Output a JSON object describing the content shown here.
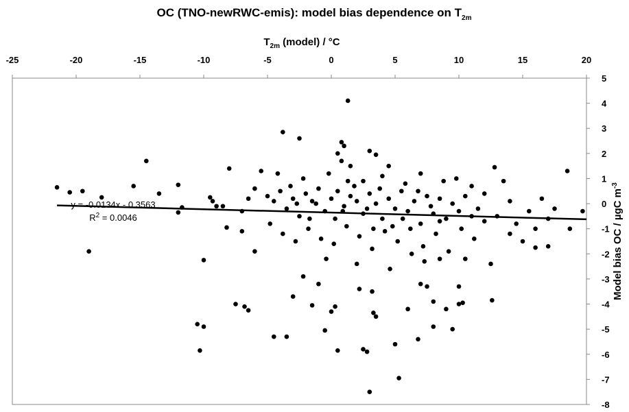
{
  "chart_data": {
    "type": "scatter",
    "title": [
      "OC (TNO-newRWC-emis): model bias dependence on T",
      "2m"
    ],
    "x_label": [
      "T",
      "2m",
      " (model) / °C"
    ],
    "y_label": [
      "Model bias OC / µgC m",
      "-3"
    ],
    "annotations": [
      "y = -0.0134x - 0.3563",
      "R",
      "2",
      " = 0.0046"
    ],
    "color": "#000000",
    "xlim": [
      -25,
      20
    ],
    "xticks": [
      -25,
      -20,
      -15,
      -10,
      -5,
      0,
      5,
      10,
      15,
      20
    ],
    "ylim": [
      -8,
      5
    ],
    "yticks": [
      -8,
      -7,
      -6,
      -5,
      -4,
      -3,
      -2,
      -1,
      0,
      1,
      2,
      3,
      4,
      5
    ],
    "grid": false,
    "series": [
      {
        "name": null,
        "color": "#000000",
        "x": [
          -21.5,
          -20.5,
          -19.5,
          -18,
          -19,
          -15.5,
          -14.5,
          -13.5,
          -12,
          -12,
          -11.7,
          -10.5,
          -10.3,
          -10,
          -10,
          -9.5,
          -9.3,
          -9,
          -8.5,
          -8.2,
          -8,
          -7.5,
          -7,
          -6.8,
          -6.5,
          -6,
          -4.5,
          -3.5,
          -3,
          -2.5,
          -2.2,
          -1.5,
          -1,
          -0.5,
          0,
          0.3,
          0.5,
          -3.8,
          0.8,
          1,
          0.5,
          1.3,
          1.5,
          3,
          3.5,
          4.5,
          2.2,
          2.5,
          2.8,
          3,
          3.2,
          3.3,
          3.5,
          5,
          5.3,
          6,
          6.8,
          7,
          7.5,
          8,
          8,
          8.5,
          9,
          9.5,
          10,
          10,
          10.3,
          10.5,
          12.5,
          12.6,
          12.8,
          13.5,
          14,
          15,
          16,
          16.5,
          17,
          18.5,
          18.7,
          19.7,
          -5,
          -4.5,
          -4,
          -3.5,
          -3,
          -2.5,
          -2,
          -1.5,
          -1,
          -0.5,
          0,
          0.5,
          1,
          1.5,
          2,
          2.5,
          3,
          3.5,
          4,
          4.5,
          5,
          5.5,
          6,
          6.5,
          7,
          7.5,
          8,
          8.5,
          9,
          9.5,
          10,
          10.5,
          11,
          11.5,
          12,
          -4.8,
          -3.8,
          -2.8,
          -1.8,
          -0.8,
          0.2,
          1.2,
          2.2,
          3.2,
          4.2,
          5.2,
          6.2,
          7.2,
          8.2,
          9.2,
          10.2,
          11.2,
          -6,
          -6.5,
          -7,
          -5.5,
          -4.2,
          -2.2,
          -0.2,
          0.8,
          2.5,
          4,
          5.8,
          7,
          8.8,
          9.8,
          11,
          12,
          13,
          14,
          14.5,
          15.5,
          16,
          17,
          17.5,
          -1.2,
          0.3,
          1.8,
          2.8,
          3.8,
          4.8,
          6.8,
          7.8,
          -3.2,
          -2.7,
          0.9,
          1.3,
          5.6,
          8.5,
          -1.7,
          3.3,
          6.3,
          -0.4,
          2,
          4.6,
          7.3
        ],
        "values": [
          0.65,
          0.45,
          0.5,
          0.25,
          -1.9,
          0.7,
          1.7,
          0.4,
          0.75,
          -0.35,
          -0.15,
          -4.8,
          -5.85,
          -4.9,
          -2.25,
          0.25,
          0.1,
          -0.1,
          -0.1,
          -0.95,
          1.4,
          -4,
          -1.1,
          -4.1,
          -4.25,
          -1.9,
          -5.3,
          -5.3,
          -3.7,
          2.6,
          -2.9,
          -4.05,
          -3.2,
          -5.05,
          -4.3,
          -4.1,
          -5.85,
          2.85,
          2.45,
          2.3,
          2.0,
          4.1,
          1.5,
          2.1,
          1.95,
          1.5,
          -3.4,
          -5.8,
          -5.9,
          -7.5,
          -3.5,
          -4.35,
          -4.5,
          -5.6,
          -6.95,
          -4.2,
          -5.4,
          -3.2,
          -3.3,
          -3.9,
          -4.9,
          -2.2,
          -4.2,
          -5.0,
          -3.3,
          -4,
          -3.95,
          -2.2,
          -2.4,
          -3.85,
          1.45,
          0.9,
          -1.2,
          -1.5,
          -1.75,
          0.2,
          -1.7,
          1.3,
          -1.0,
          -0.3,
          0.3,
          0.1,
          0.5,
          -0.2,
          0.2,
          -0.5,
          0.4,
          0.1,
          0.6,
          -0.3,
          0.2,
          0.5,
          -0.1,
          0.3,
          0.1,
          -0.4,
          0.4,
          0,
          -0.6,
          0.2,
          -0.2,
          0.5,
          -0.3,
          0.1,
          -0.8,
          0.3,
          -0.4,
          0.2,
          -0.6,
          0,
          -0.3,
          0.3,
          -0.5,
          -0.2,
          -0.7,
          -0.8,
          -1.2,
          -1.5,
          -1.0,
          -1.4,
          -1.6,
          -0.9,
          -1.3,
          -1.8,
          -1.1,
          -1.5,
          -1.0,
          -1.7,
          -1.2,
          -1.9,
          -1.0,
          -1.4,
          0.6,
          0.2,
          -0.3,
          1.3,
          1.2,
          1.0,
          1.2,
          1.7,
          0.9,
          1.1,
          0.8,
          1.2,
          0.9,
          1.0,
          0.7,
          0.4,
          -0.5,
          0.1,
          -0.8,
          -0.3,
          -1.0,
          -0.6,
          -0.2,
          0.0,
          -0.6,
          0.7,
          -0.2,
          0.6,
          -0.9,
          0.5,
          -0.1,
          0.7,
          0.0,
          -0.3,
          0.9,
          -0.6,
          -0.7,
          -0.6,
          -1.0,
          -2.0,
          -2.2,
          -2.4,
          -2.6,
          -2.3
        ]
      }
    ],
    "trendline": {
      "color": "#000000",
      "x": [
        -21.5,
        20
      ],
      "values": [
        -0.068,
        -0.624
      ]
    }
  }
}
